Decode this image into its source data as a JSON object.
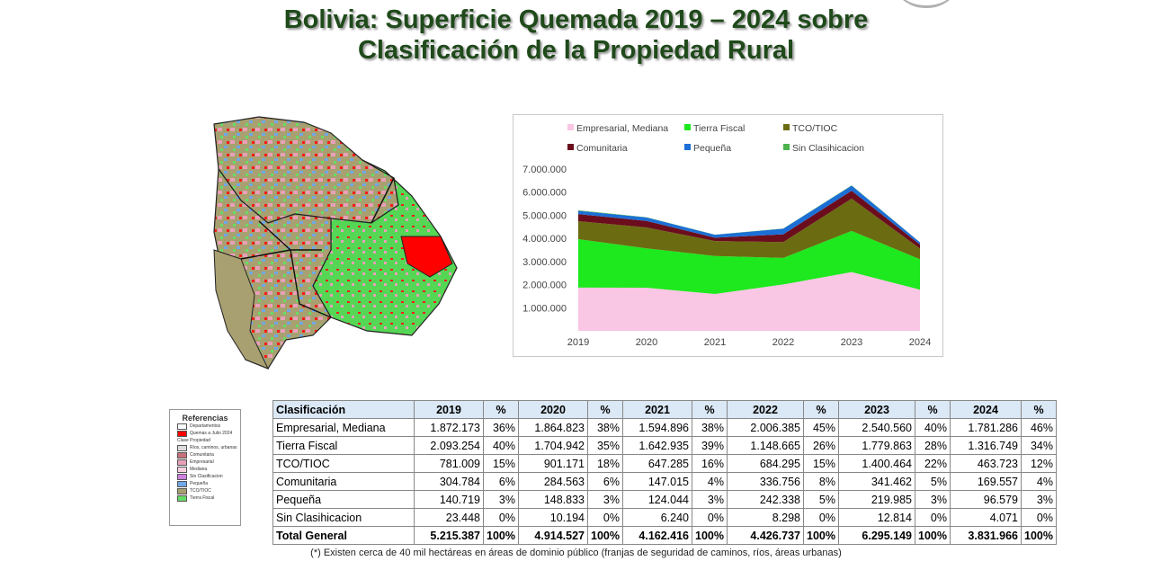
{
  "title_line1": "Bolivia: Superficie Quemada 2019 – 2024 sobre",
  "title_line2": "Clasificación de la Propiedad Rural",
  "colors": {
    "Empresarial, Mediana": "#f9c6e3",
    "Tierra Fiscal": "#1ee81e",
    "TCO/TIOC": "#6b6b12",
    "Comunitaria": "#6b0d1c",
    "Pequeña": "#1c6fd6",
    "Sin Clasihicacion": "#4db34d"
  },
  "chart_data": {
    "type": "area",
    "stacked": true,
    "legend_position": "top",
    "x": [
      "2019",
      "2020",
      "2021",
      "2022",
      "2023",
      "2024"
    ],
    "ylim": [
      0,
      7000000
    ],
    "y_ticks": [
      "1.000.000",
      "2.000.000",
      "3.000.000",
      "4.000.000",
      "5.000.000",
      "6.000.000",
      "7.000.000"
    ],
    "series": [
      {
        "name": "Empresarial, Mediana",
        "values": [
          1872173,
          1864823,
          1594896,
          2006385,
          2540560,
          1781286
        ]
      },
      {
        "name": "Tierra Fiscal",
        "values": [
          2093254,
          1704942,
          1642935,
          1148665,
          1779863,
          1316749
        ]
      },
      {
        "name": "TCO/TIOC",
        "values": [
          781009,
          901171,
          647285,
          684295,
          1400464,
          463723
        ]
      },
      {
        "name": "Comunitaria",
        "values": [
          304784,
          284563,
          147015,
          336756,
          341462,
          169557
        ]
      },
      {
        "name": "Pequeña",
        "values": [
          140719,
          148833,
          124044,
          242338,
          219985,
          96579
        ]
      },
      {
        "name": "Sin Clasihicacion",
        "values": [
          23448,
          10194,
          6240,
          8298,
          12814,
          4071
        ]
      }
    ],
    "legend_display": [
      "Empresarial, Mediana",
      "Tierra Fiscal",
      "TCO/TIOC",
      "Comunitaria",
      "Pequeña",
      "Sin Clasihicacion"
    ]
  },
  "table": {
    "headers": [
      "Clasificación",
      "2019",
      "%",
      "2020",
      "%",
      "2021",
      "%",
      "2022",
      "%",
      "2023",
      "%",
      "2024",
      "%"
    ],
    "rows": [
      [
        "Empresarial, Mediana",
        "1.872.173",
        "36%",
        "1.864.823",
        "38%",
        "1.594.896",
        "38%",
        "2.006.385",
        "45%",
        "2.540.560",
        "40%",
        "1.781.286",
        "46%"
      ],
      [
        "Tierra Fiscal",
        "2.093.254",
        "40%",
        "1.704.942",
        "35%",
        "1.642.935",
        "39%",
        "1.148.665",
        "26%",
        "1.779.863",
        "28%",
        "1.316.749",
        "34%"
      ],
      [
        "TCO/TIOC",
        "781.009",
        "15%",
        "901.171",
        "18%",
        "647.285",
        "16%",
        "684.295",
        "15%",
        "1.400.464",
        "22%",
        "463.723",
        "12%"
      ],
      [
        "Comunitaria",
        "304.784",
        "6%",
        "284.563",
        "6%",
        "147.015",
        "4%",
        "336.756",
        "8%",
        "341.462",
        "5%",
        "169.557",
        "4%"
      ],
      [
        "Pequeña",
        "140.719",
        "3%",
        "148.833",
        "3%",
        "124.044",
        "3%",
        "242.338",
        "5%",
        "219.985",
        "3%",
        "96.579",
        "3%"
      ],
      [
        "Sin Clasihicacion",
        "23.448",
        "0%",
        "10.194",
        "0%",
        "6.240",
        "0%",
        "8.298",
        "0%",
        "12.814",
        "0%",
        "4.071",
        "0%"
      ]
    ],
    "total": [
      "Total General",
      "5.215.387",
      "100%",
      "4.914.527",
      "100%",
      "4.162.416",
      "100%",
      "4.426.737",
      "100%",
      "6.295.149",
      "100%",
      "3.831.966",
      "100%"
    ]
  },
  "map_legend": {
    "title": "Referencias",
    "items": [
      {
        "label": "Departamentos",
        "color": "#ffffff"
      },
      {
        "label": "Quemas a Julio 2024",
        "color": "#ff0000"
      },
      {
        "label": "Clase Propiedad",
        "color": ""
      },
      {
        "label": "Ríos, caminos, urbanas",
        "color": "#dddddd"
      },
      {
        "label": "Comunitaria",
        "color": "#c9707a"
      },
      {
        "label": "Empresarial",
        "color": "#e8a0b8"
      },
      {
        "label": "Mediana",
        "color": "#f7d0e0"
      },
      {
        "label": "Sin Clasificacion",
        "color": "#d080e0"
      },
      {
        "label": "Pequeña",
        "color": "#6fa8e8"
      },
      {
        "label": "TCO/TIOC",
        "color": "#a8a070"
      },
      {
        "label": "Tierra Fiscal",
        "color": "#66dd66"
      }
    ]
  },
  "footnote": "(*) Existen cerca de 40 mil hectáreas en áreas de dominio público (franjas de seguridad de caminos, ríos, áreas urbanas)"
}
